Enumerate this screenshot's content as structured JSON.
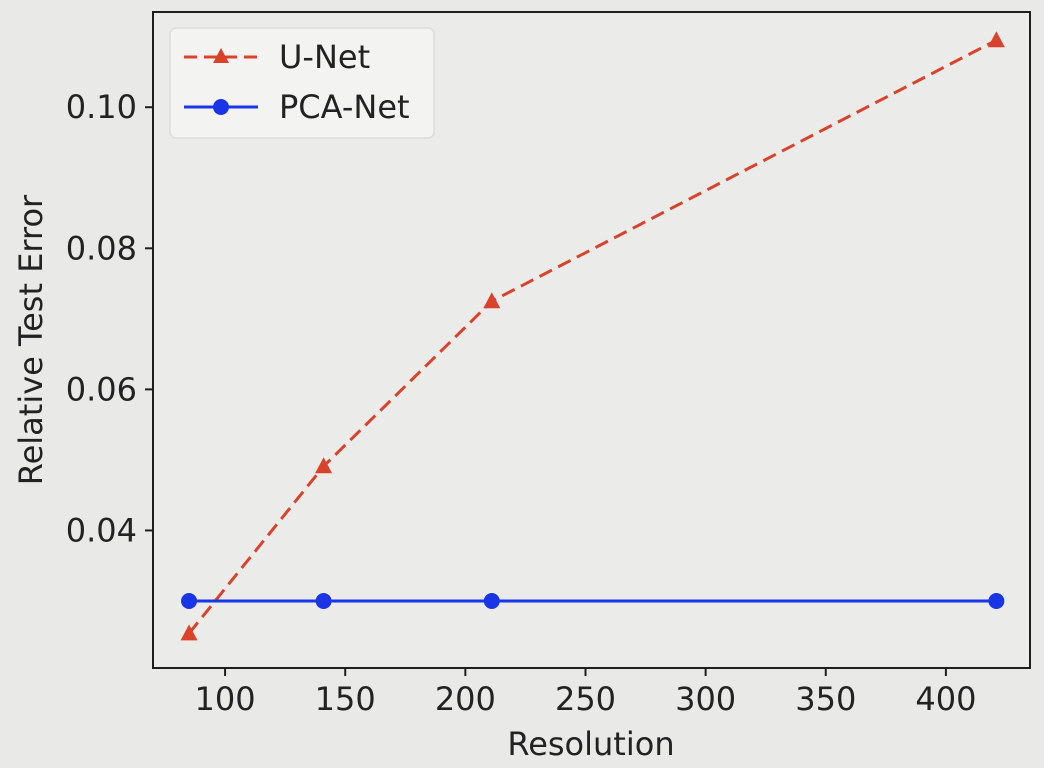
{
  "chart_data": {
    "type": "line",
    "title": "",
    "xlabel": "Resolution",
    "ylabel": "Relative Test Error",
    "xlim": [
      70,
      435
    ],
    "ylim": [
      0.0205,
      0.1135
    ],
    "xticks": [
      100,
      150,
      200,
      250,
      300,
      350,
      400
    ],
    "xtick_labels": [
      "100",
      "150",
      "200",
      "250",
      "300",
      "350",
      "400"
    ],
    "yticks": [
      0.04,
      0.06,
      0.08,
      0.1
    ],
    "ytick_labels": [
      "0.04",
      "0.06",
      "0.08",
      "0.10"
    ],
    "grid": false,
    "legend_position": "top-left",
    "series": [
      {
        "name": "U-Net",
        "x": [
          85,
          141,
          211,
          421
        ],
        "y": [
          0.0254,
          0.0491,
          0.0725,
          0.1095
        ],
        "color": "#d9432b",
        "line_style": "dashed",
        "marker": "triangle"
      },
      {
        "name": "PCA-Net",
        "x": [
          85,
          141,
          211,
          421
        ],
        "y": [
          0.03,
          0.03,
          0.03,
          0.03
        ],
        "color": "#1a35e6",
        "line_style": "solid",
        "marker": "circle"
      }
    ]
  }
}
